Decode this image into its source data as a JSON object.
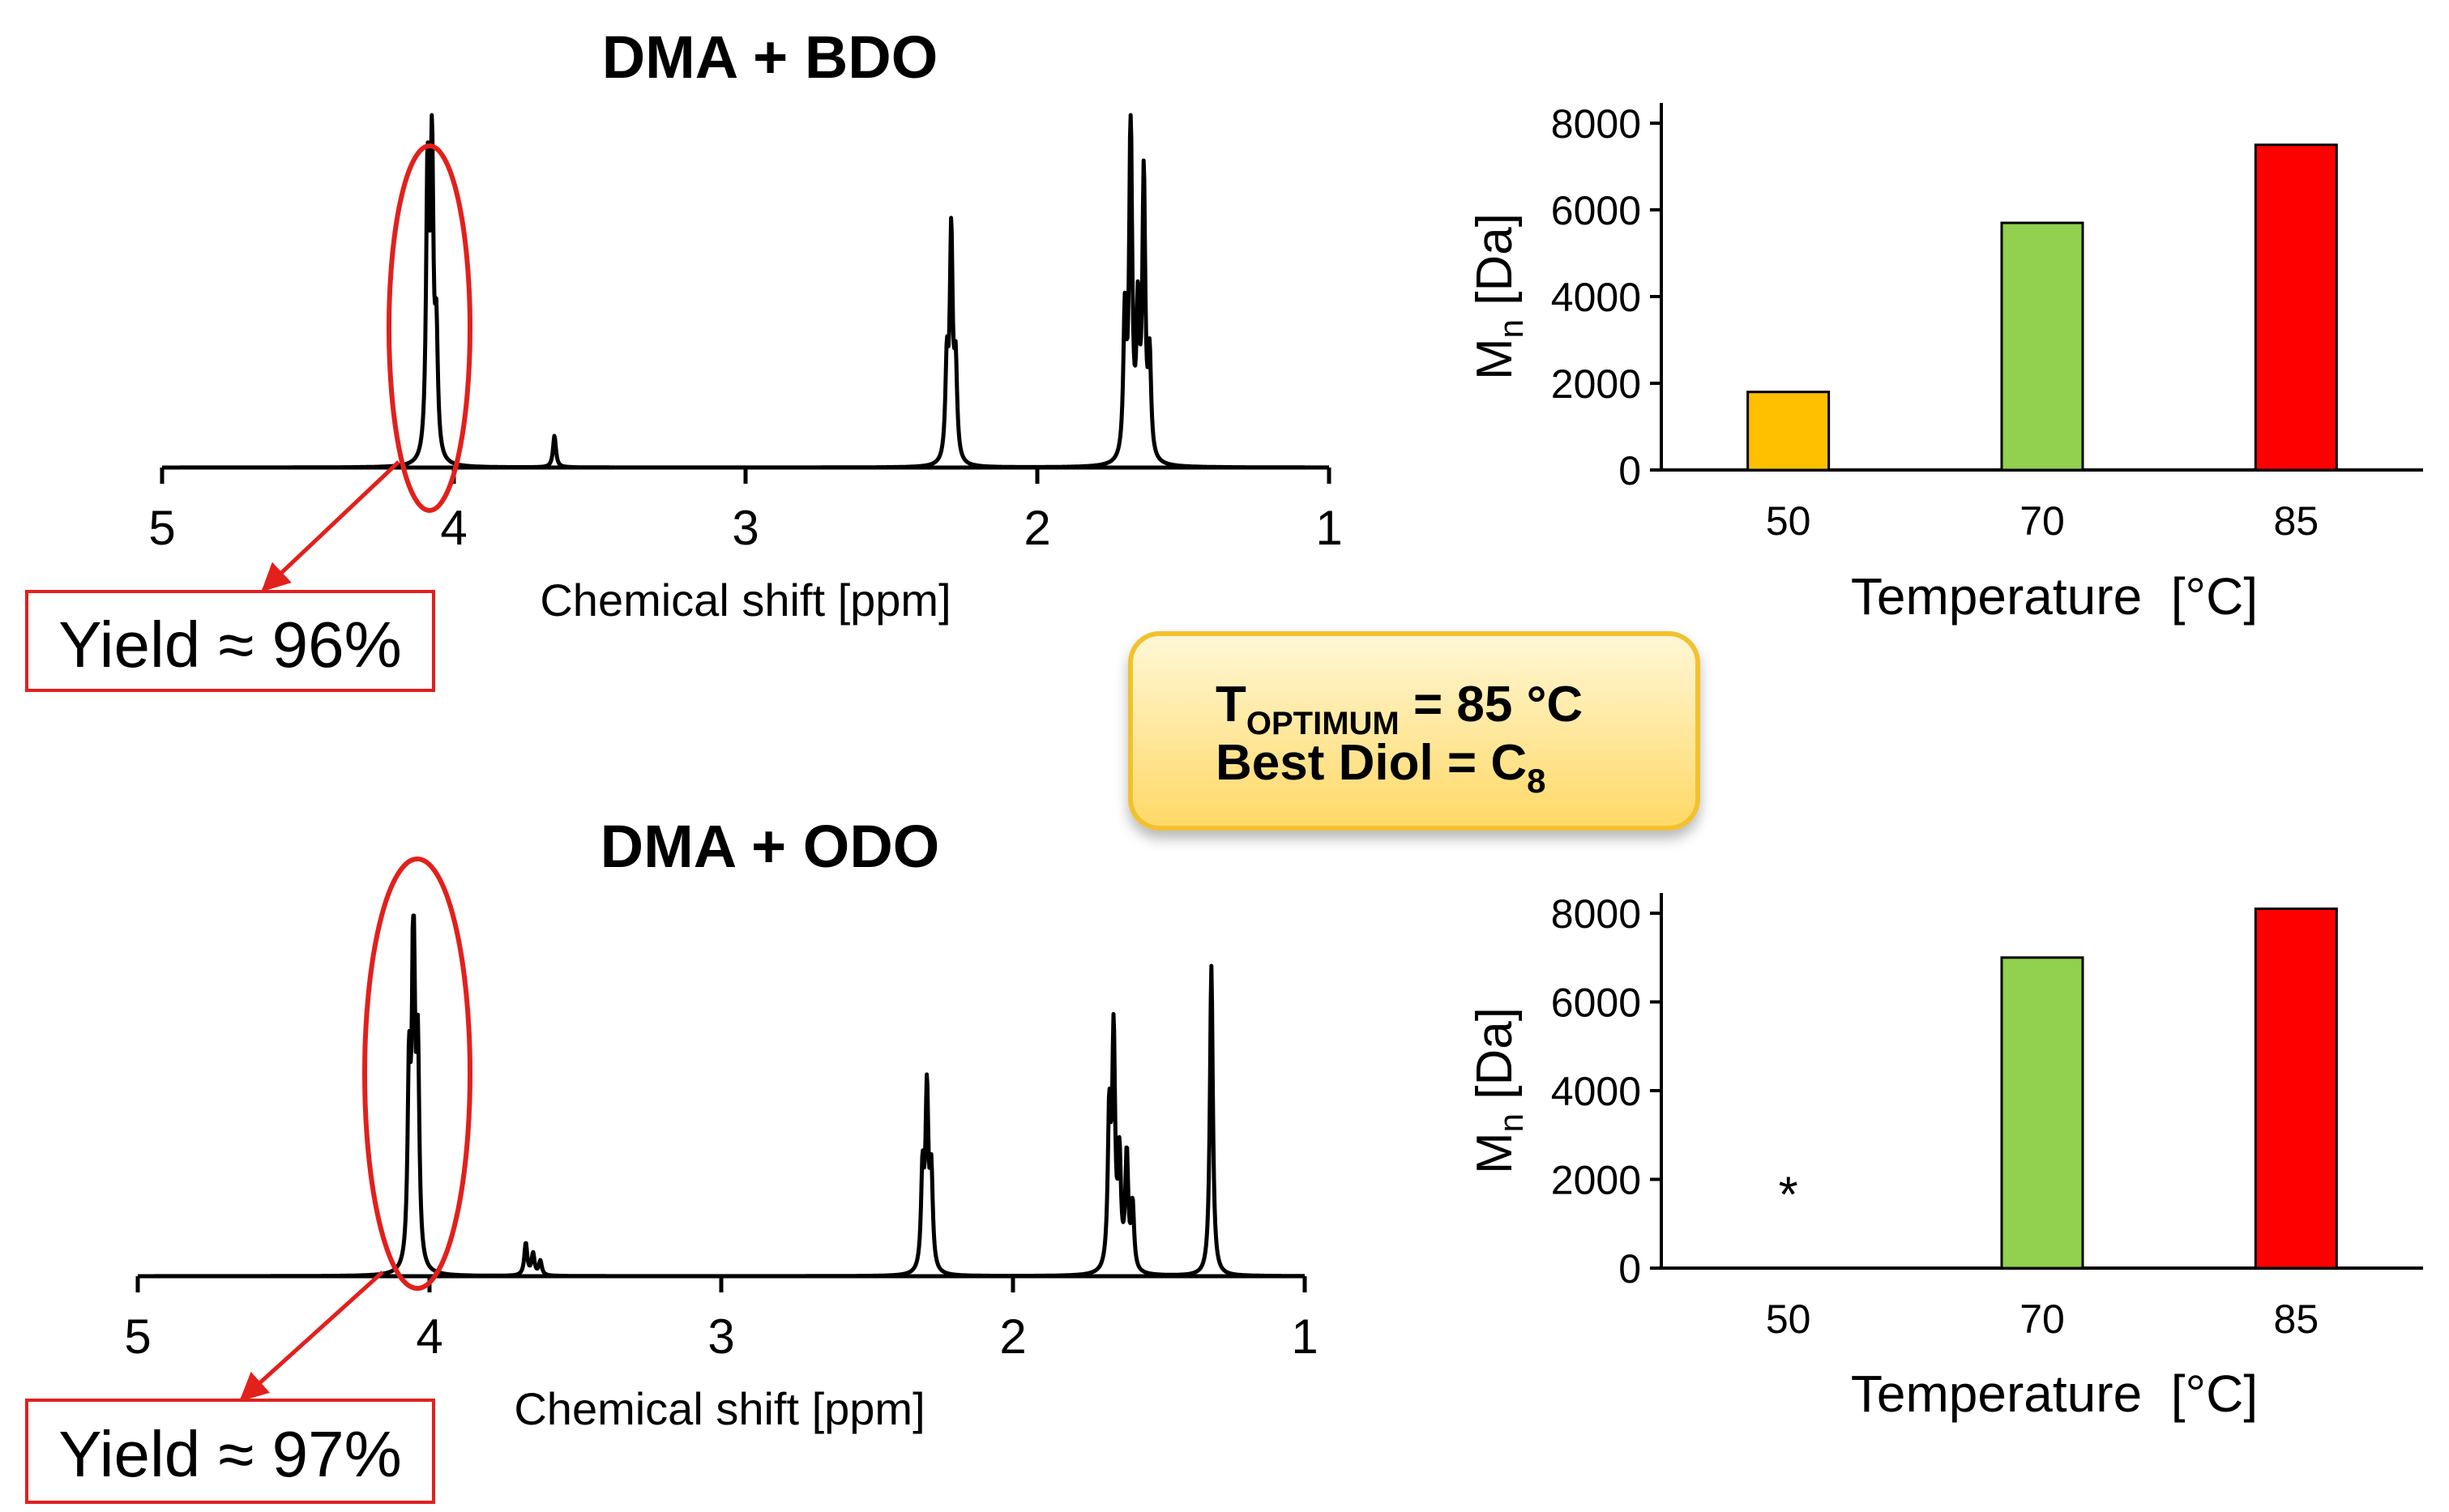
{
  "colors": {
    "ellipse": "#e2201c",
    "bar_50": "#ffc000",
    "bar_70": "#92d050",
    "bar_85": "#ff0000",
    "callout_fill_top": "#fff7d6",
    "callout_fill_bottom": "#ffd966",
    "callout_border": "#f2c12e"
  },
  "callout": {
    "t_main": "T",
    "t_sub": "OPTIMUM",
    "t_rest": " = 85 °C",
    "diol_main": "Best Diol = C",
    "diol_sub": "8"
  },
  "chart_data": [
    {
      "type": "line",
      "title": "DMA + BDO",
      "xlabel": "Chemical shift [ppm]",
      "x_range": [
        5,
        1
      ],
      "x_reversed": true,
      "x_ticks": [
        5,
        4,
        3,
        2,
        1
      ],
      "yield_label": "Yield ≈ 96%",
      "highlight": {
        "from_ppm": 4.17,
        "to_ppm": 3.95
      },
      "peaks": [
        {
          "ppm": 4.09,
          "height": 0.8
        },
        {
          "ppm": 4.075,
          "height": 0.86
        },
        {
          "ppm": 4.06,
          "height": 0.33
        },
        {
          "ppm": 3.655,
          "height": 0.09
        },
        {
          "ppm": 2.31,
          "height": 0.27
        },
        {
          "ppm": 2.295,
          "height": 0.64
        },
        {
          "ppm": 2.28,
          "height": 0.26
        },
        {
          "ppm": 1.7,
          "height": 0.4
        },
        {
          "ppm": 1.68,
          "height": 0.98
        },
        {
          "ppm": 1.655,
          "height": 0.4
        },
        {
          "ppm": 1.635,
          "height": 0.8
        },
        {
          "ppm": 1.615,
          "height": 0.28
        }
      ]
    },
    {
      "type": "bar",
      "categories": [
        "50",
        "70",
        "85"
      ],
      "values": [
        1800,
        5700,
        7500
      ],
      "ylabel_main": "M",
      "ylabel_sub": "n",
      "ylabel_rest": " [Da]",
      "xlabel": "Temperature  [°C]",
      "ylim": [
        0,
        8000
      ],
      "y_ticks": [
        0,
        2000,
        4000,
        6000,
        8000
      ],
      "y_tick_labels": [
        "0",
        "2000",
        "4000",
        "6000",
        "8000"
      ],
      "annotations": []
    },
    {
      "type": "line",
      "title": "DMA + ODO",
      "xlabel": "Chemical shift [ppm]",
      "x_range": [
        5,
        1
      ],
      "x_reversed": true,
      "x_ticks": [
        5,
        4,
        3,
        2,
        1
      ],
      "yield_label": "Yield ≈ 97%",
      "highlight": {
        "from_ppm": 4.2,
        "to_ppm": 3.85
      },
      "peaks": [
        {
          "ppm": 4.07,
          "height": 0.52
        },
        {
          "ppm": 4.055,
          "height": 0.98
        },
        {
          "ppm": 4.04,
          "height": 0.57
        },
        {
          "ppm": 3.67,
          "height": 0.09
        },
        {
          "ppm": 3.645,
          "height": 0.06
        },
        {
          "ppm": 3.62,
          "height": 0.04
        },
        {
          "ppm": 2.31,
          "height": 0.27
        },
        {
          "ppm": 2.295,
          "height": 0.49
        },
        {
          "ppm": 2.28,
          "height": 0.26
        },
        {
          "ppm": 1.67,
          "height": 0.42
        },
        {
          "ppm": 1.655,
          "height": 0.64
        },
        {
          "ppm": 1.635,
          "height": 0.3
        },
        {
          "ppm": 1.61,
          "height": 0.32
        },
        {
          "ppm": 1.59,
          "height": 0.18
        },
        {
          "ppm": 1.32,
          "height": 0.86
        }
      ]
    },
    {
      "type": "bar",
      "categories": [
        "50",
        "70",
        "85"
      ],
      "values": [
        null,
        7000,
        8100
      ],
      "ylabel_main": "M",
      "ylabel_sub": "n",
      "ylabel_rest": " [Da]",
      "xlabel": "Temperature  [°C]",
      "ylim": [
        0,
        8000
      ],
      "y_ticks": [
        0,
        2000,
        4000,
        6000,
        8000
      ],
      "y_tick_labels": [
        "0",
        "2000",
        "4000",
        "6000",
        "8000"
      ],
      "annotations": [
        {
          "category": "50",
          "text": "*"
        }
      ]
    }
  ]
}
